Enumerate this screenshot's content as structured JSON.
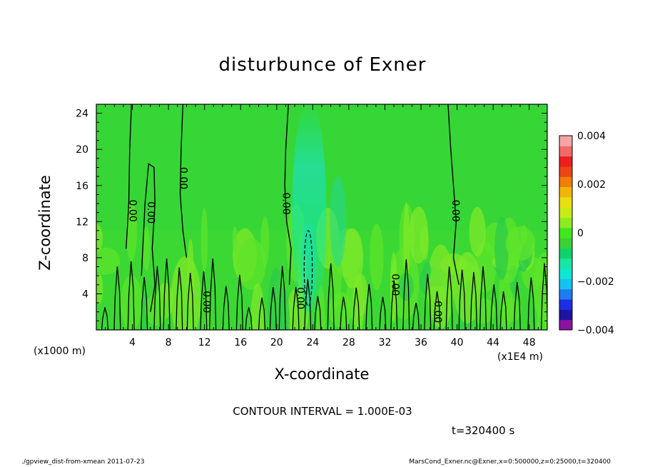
{
  "chart_data": {
    "type": "heatmap",
    "title": "disturbunce of Exner",
    "xlabel": "X-coordinate",
    "ylabel": "Z-coordinate",
    "x_unit_label": "(x1000 m)",
    "x_scale_label": "(x1E4 m)",
    "xlim": [
      0,
      50
    ],
    "ylim": [
      0,
      25
    ],
    "x_ticks": [
      4,
      8,
      12,
      16,
      20,
      24,
      28,
      32,
      36,
      40,
      44,
      48
    ],
    "y_ticks": [
      4,
      8,
      12,
      16,
      20,
      24
    ],
    "colorbar": {
      "range": [
        -0.004,
        0.004
      ],
      "tick_values": [
        0.004,
        0.002,
        0,
        -0.002,
        -0.004
      ],
      "tick_labels": [
        "0.004",
        "0.002",
        "0",
        "−0.002",
        "−0.004"
      ],
      "colors": [
        "#8a14a0",
        "#1e14a0",
        "#1c2ee0",
        "#1e7cf0",
        "#16c2f0",
        "#10e6d2",
        "#18e6a4",
        "#10d26c",
        "#3ad232",
        "#40e81e",
        "#8cec20",
        "#c6ec14",
        "#e8de10",
        "#f2b60a",
        "#f07e0a",
        "#ec4614",
        "#ec1e1e",
        "#f06a6a",
        "#f4a6a6"
      ]
    },
    "contour_interval": "CONTOUR INTERVAL = 1.000E-03",
    "contour_labels": [
      {
        "text": "0.00",
        "x": 4.0,
        "y": 13.2
      },
      {
        "text": "0.00",
        "x": 6.0,
        "y": 13.0
      },
      {
        "text": "0.00",
        "x": 9.6,
        "y": 16.8
      },
      {
        "text": "0.00",
        "x": 12.2,
        "y": 3.1
      },
      {
        "text": "0.00",
        "x": 21.0,
        "y": 14.0
      },
      {
        "text": "0.00",
        "x": 22.6,
        "y": 3.5
      },
      {
        "text": "0.00",
        "x": 33.1,
        "y": 5.0
      },
      {
        "text": "0.00",
        "x": 37.8,
        "y": 2.0
      },
      {
        "text": "0.00",
        "x": 39.8,
        "y": 13.2
      }
    ],
    "zero_contours": [
      {
        "points": [
          [
            3.9,
            25
          ],
          [
            3.7,
            20
          ],
          [
            3.6,
            14
          ],
          [
            3.3,
            9
          ]
        ]
      },
      {
        "points": [
          [
            9.6,
            25
          ],
          [
            9.4,
            20
          ],
          [
            9.3,
            15
          ],
          [
            9.6,
            11
          ],
          [
            10.0,
            8
          ]
        ]
      },
      {
        "points": [
          [
            5.0,
            6
          ],
          [
            5.2,
            10
          ],
          [
            5.4,
            14
          ],
          [
            5.8,
            18.4
          ],
          [
            6.4,
            18
          ],
          [
            6.5,
            14
          ],
          [
            6.2,
            9
          ],
          [
            6.5,
            5
          ],
          [
            6.0,
            2
          ]
        ]
      },
      {
        "points": [
          [
            21.3,
            25
          ],
          [
            21.0,
            20
          ],
          [
            20.9,
            16
          ],
          [
            21.1,
            12
          ],
          [
            21.6,
            9
          ],
          [
            21.4,
            5
          ]
        ]
      },
      {
        "points": [
          [
            39.0,
            25
          ],
          [
            39.3,
            20
          ],
          [
            39.6,
            16
          ],
          [
            39.9,
            12
          ],
          [
            39.6,
            8
          ],
          [
            40.2,
            5
          ]
        ]
      }
    ],
    "negative_contours": [
      {
        "cx": 23.5,
        "cy": 6.8,
        "rx": 0.45,
        "ry": 4.2
      }
    ],
    "time_label": "t=320400 s"
  },
  "footer": {
    "left": "./gpview_dist-from-xmean   2011-07-23",
    "right": "MarsCond_Exner.nc@Exner,x=0:500000,z=0:25000,t=320400"
  }
}
